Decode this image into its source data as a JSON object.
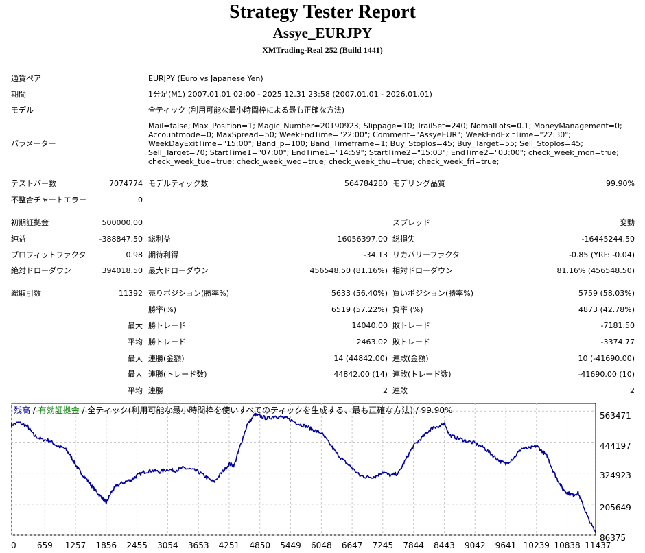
{
  "header": {
    "title": "Strategy Tester Report",
    "subtitle": "Assye_EURJPY",
    "server": "XMTrading-Real 252 (Build 1441)"
  },
  "info": {
    "pair_label": "通貨ペア",
    "pair_value": "EURJPY (Euro vs Japanese Yen)",
    "period_label": "期間",
    "period_value": "1分足(M1) 2007.01.01 02:00 - 2025.12.31 23:58 (2007.01.01 - 2026.01.01)",
    "model_label": "モデル",
    "model_value": "全ティック (利用可能な最小時間枠による最も正確な方法)",
    "params_label": "パラメーター",
    "params_value": "Mail=false; Max_Position=1; Magic_Number=20190923; Slippage=10; TrailSet=240; NomalLots=0.1; MoneyManagement=0; Accountmode=0; MaxSpread=50; WeekEndTime=\"22:00\"; Comment=\"AssyeEUR\"; WeekEndExitTime=\"22:30\"; WeekDayExitTime=\"15:00\"; Band_p=100; Band_Timeframe=1; Buy_Stoplos=45; Buy_Target=55; Sell_Stoplos=45; Sell_Target=70; StartTime1=\"07:00\"; EndTime1=\"14:59\"; StartTime2=\"15:03\"; EndTime2=\"03:00\"; check_week_mon=true; check_week_tue=true; check_week_wed=true; check_week_thu=true; check_week_fri=true;"
  },
  "stats": {
    "bars_label": "テストバー数",
    "bars_value": "7074774",
    "ticks_label": "モデルティック数",
    "ticks_value": "564784280",
    "quality_label": "モデリング品質",
    "quality_value": "99.90%",
    "mismatch_label": "不整合チャートエラー",
    "mismatch_value": "0",
    "deposit_label": "初期証拠金",
    "deposit_value": "500000.00",
    "spread_label": "スプレッド",
    "spread_value": "変動",
    "net_label": "純益",
    "net_value": "-388847.50",
    "gross_profit_label": "総利益",
    "gross_profit_value": "16056397.00",
    "gross_loss_label": "総損失",
    "gross_loss_value": "-16445244.50",
    "pf_label": "プロフィットファクタ",
    "pf_value": "0.98",
    "expected_label": "期待利得",
    "expected_value": "-34.13",
    "recovery_label": "リカバリーファクタ",
    "recovery_value": "-0.85 (YRF: -0.04)",
    "abs_dd_label": "絶対ドローダウン",
    "abs_dd_value": "394018.50",
    "max_dd_label": "最大ドローダウン",
    "max_dd_value": "456548.50 (81.16%)",
    "rel_dd_label": "相対ドローダウン",
    "rel_dd_value": "81.16% (456548.50)",
    "total_label": "総取引数",
    "total_value": "11392",
    "short_label": "売りポジション(勝率%)",
    "short_value": "5633 (56.40%)",
    "long_label": "買いポジション(勝率%)",
    "long_value": "5759 (58.03%)",
    "win_rate_label": "勝率(%)",
    "win_rate_value": "6519 (57.22%)",
    "loss_rate_label": "負率 (%)",
    "loss_rate_value": "4873 (42.78%)",
    "max_prefix": "最大",
    "avg_prefix": "平均",
    "max_win_label": "勝トレード",
    "max_win_value": "14040.00",
    "max_loss_label": "敗トレード",
    "max_loss_value": "-7181.50",
    "avg_win_label": "勝トレード",
    "avg_win_value": "2463.02",
    "avg_loss_label": "敗トレード",
    "avg_loss_value": "-3374.77",
    "cons_wins_amt_label": "連勝(金額)",
    "cons_wins_amt_value": "14 (44842.00)",
    "cons_losses_amt_label": "連敗(金額)",
    "cons_losses_amt_value": "10 (-41690.00)",
    "cons_wins_cnt_label": "連勝(トレード数)",
    "cons_wins_cnt_value": "44842.00 (14)",
    "cons_losses_cnt_label": "連敗(トレード数)",
    "cons_losses_cnt_value": "-41690.00 (10)",
    "avg_cons_wins_label": "連勝",
    "avg_cons_wins_value": "2",
    "avg_cons_losses_label": "連敗",
    "avg_cons_losses_value": "2"
  },
  "chart_data": {
    "type": "line",
    "legend": {
      "balance": "残高",
      "sep1": " / ",
      "equity": "有効証拠金",
      "sep2": " / ",
      "desc": "全ティック(利用可能な最小時間枠を使いすべてのティックを生成する、最も正確な方法) / 99.90%"
    },
    "colors": {
      "balance": "#0000a0",
      "equity": "#008000",
      "grid": "#c8c8c8"
    },
    "y_ticks": [
      "563471",
      "444197",
      "324923",
      "205649",
      "86375"
    ],
    "x_ticks": [
      "0",
      "659",
      "1257",
      "1856",
      "2455",
      "3054",
      "3653",
      "4251",
      "4850",
      "5449",
      "6048",
      "6647",
      "7245",
      "7844",
      "8443",
      "9042",
      "9641",
      "10239",
      "10838",
      "11437"
    ],
    "xlim": [
      0,
      11392
    ],
    "ylim": [
      86375,
      593289
    ],
    "series": [
      {
        "values": [
          [
            0,
            510000
          ],
          [
            150,
            520000
          ],
          [
            320,
            505000
          ],
          [
            450,
            470000
          ],
          [
            600,
            455000
          ],
          [
            750,
            450000
          ],
          [
            900,
            430000
          ],
          [
            1050,
            420000
          ],
          [
            1150,
            395000
          ],
          [
            1250,
            360000
          ],
          [
            1350,
            330000
          ],
          [
            1480,
            300000
          ],
          [
            1600,
            270000
          ],
          [
            1700,
            245000
          ],
          [
            1800,
            225000
          ],
          [
            1856,
            210000
          ],
          [
            1950,
            250000
          ],
          [
            2050,
            275000
          ],
          [
            2200,
            290000
          ],
          [
            2350,
            300000
          ],
          [
            2455,
            315000
          ],
          [
            2600,
            330000
          ],
          [
            2750,
            335000
          ],
          [
            2900,
            330000
          ],
          [
            3054,
            340000
          ],
          [
            3200,
            335000
          ],
          [
            3350,
            345000
          ],
          [
            3500,
            340000
          ],
          [
            3653,
            330000
          ],
          [
            3800,
            310000
          ],
          [
            3950,
            290000
          ],
          [
            4100,
            325000
          ],
          [
            4251,
            360000
          ],
          [
            4350,
            355000
          ],
          [
            4450,
            420000
          ],
          [
            4600,
            510000
          ],
          [
            4750,
            550000
          ],
          [
            4850,
            545000
          ],
          [
            5000,
            535000
          ],
          [
            5150,
            545000
          ],
          [
            5300,
            540000
          ],
          [
            5449,
            530000
          ],
          [
            5600,
            515000
          ],
          [
            5750,
            505000
          ],
          [
            5900,
            490000
          ],
          [
            6048,
            480000
          ],
          [
            6200,
            440000
          ],
          [
            6350,
            400000
          ],
          [
            6500,
            370000
          ],
          [
            6647,
            345000
          ],
          [
            6800,
            315000
          ],
          [
            6950,
            310000
          ],
          [
            7100,
            312000
          ],
          [
            7245,
            330000
          ],
          [
            7400,
            315000
          ],
          [
            7550,
            325000
          ],
          [
            7700,
            380000
          ],
          [
            7844,
            430000
          ],
          [
            8000,
            460000
          ],
          [
            8150,
            490000
          ],
          [
            8250,
            505000
          ],
          [
            8350,
            500000
          ],
          [
            8443,
            520000
          ],
          [
            8550,
            470000
          ],
          [
            8700,
            460000
          ],
          [
            8850,
            450000
          ],
          [
            9042,
            440000
          ],
          [
            9200,
            425000
          ],
          [
            9350,
            400000
          ],
          [
            9500,
            375000
          ],
          [
            9641,
            360000
          ],
          [
            9800,
            385000
          ],
          [
            9950,
            420000
          ],
          [
            10100,
            420000
          ],
          [
            10239,
            430000
          ],
          [
            10350,
            410000
          ],
          [
            10450,
            390000
          ],
          [
            10550,
            340000
          ],
          [
            10650,
            300000
          ],
          [
            10750,
            265000
          ],
          [
            10838,
            250000
          ],
          [
            10950,
            240000
          ],
          [
            11050,
            250000
          ],
          [
            11150,
            200000
          ],
          [
            11250,
            150000
          ],
          [
            11392,
            95000
          ]
        ]
      }
    ]
  }
}
